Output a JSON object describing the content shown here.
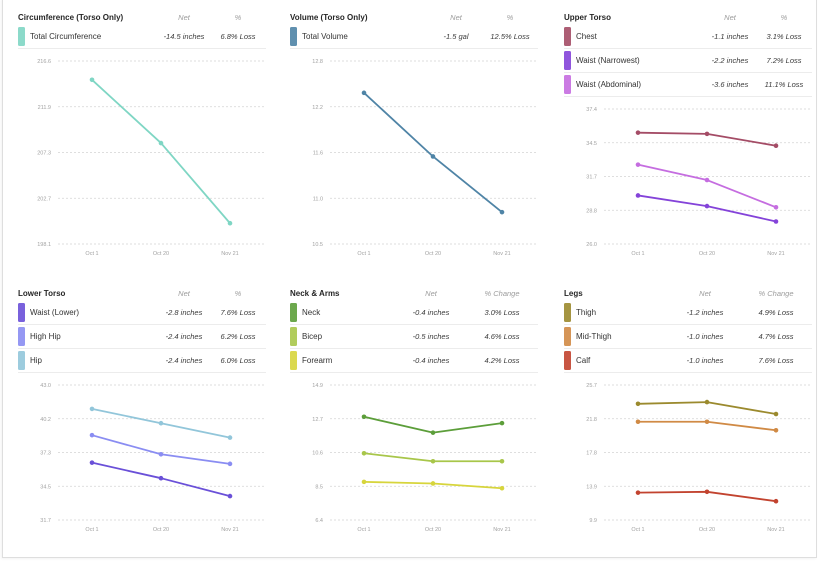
{
  "panels": [
    {
      "net_header": "Net",
      "pct_header": "%",
      "rows": [
        {
          "net": "-14.5 inches",
          "pct": "6.8% Loss"
        }
      ]
    },
    {
      "net_header": "Net",
      "pct_header": "%",
      "rows": [
        {
          "net": "-1.5 gal",
          "pct": "12.5% Loss"
        }
      ]
    },
    {
      "net_header": "Net",
      "pct_header": "%",
      "rows": [
        {
          "net": "-1.1 inches",
          "pct": "3.1% Loss"
        },
        {
          "net": "-2.2 inches",
          "pct": "7.2% Loss"
        },
        {
          "net": "-3.6 inches",
          "pct": "11.1% Loss"
        }
      ]
    },
    {
      "net_header": "Net",
      "pct_header": "%",
      "rows": [
        {
          "net": "-2.8 inches",
          "pct": "7.6% Loss"
        },
        {
          "net": "-2.4 inches",
          "pct": "6.2% Loss"
        },
        {
          "net": "-2.4 inches",
          "pct": "6.0% Loss"
        }
      ]
    },
    {
      "net_header": "Net",
      "pct_header": "% Change",
      "rows": [
        {
          "net": "-0.4 inches",
          "pct": "3.0% Loss"
        },
        {
          "net": "-0.5 inches",
          "pct": "4.6% Loss"
        },
        {
          "net": "-0.4 inches",
          "pct": "4.2% Loss"
        }
      ]
    },
    {
      "net_header": "Net",
      "pct_header": "% Change",
      "rows": [
        {
          "net": "-1.2 inches",
          "pct": "4.9% Loss"
        },
        {
          "net": "-1.0 inches",
          "pct": "4.7% Loss"
        },
        {
          "net": "-1.0 inches",
          "pct": "7.6% Loss"
        }
      ]
    }
  ],
  "chart_data": [
    {
      "type": "line",
      "title": "Circumference (Torso Only)",
      "categories": [
        "Oct 1",
        "Oct 20",
        "Nov 21"
      ],
      "yticks": [
        "216.6",
        "211.9",
        "207.3",
        "202.7",
        "198.1"
      ],
      "ylim": [
        198.1,
        216.6
      ],
      "grid": true,
      "series": [
        {
          "name": "Total Circumference",
          "color": "#7fd6c4",
          "values": [
            214.7,
            208.3,
            200.2
          ]
        }
      ]
    },
    {
      "type": "line",
      "title": "Volume (Torso Only)",
      "categories": [
        "Oct 1",
        "Oct 20",
        "Nov 21"
      ],
      "yticks": [
        "12.8",
        "12.2",
        "11.6",
        "11.0",
        "10.5"
      ],
      "ylim": [
        10.5,
        12.8
      ],
      "grid": true,
      "series": [
        {
          "name": "Total Volume",
          "color": "#4f84a6",
          "values": [
            12.4,
            11.6,
            10.9
          ]
        }
      ]
    },
    {
      "type": "line",
      "title": "Upper Torso",
      "categories": [
        "Oct 1",
        "Oct 20",
        "Nov 21"
      ],
      "yticks": [
        "37.4",
        "34.5",
        "31.7",
        "28.8",
        "26.0"
      ],
      "ylim": [
        26.0,
        37.4
      ],
      "grid": true,
      "series": [
        {
          "name": "Chest",
          "color": "#a44c66",
          "values": [
            35.4,
            35.3,
            34.3
          ]
        },
        {
          "name": "Waist (Narrowest)",
          "color": "#8443d9",
          "values": [
            30.1,
            29.2,
            27.9
          ]
        },
        {
          "name": "Waist (Abdominal)",
          "color": "#c56de0",
          "values": [
            32.7,
            31.4,
            29.1
          ]
        }
      ]
    },
    {
      "type": "line",
      "title": "Lower Torso",
      "categories": [
        "Oct 1",
        "Oct 20",
        "Nov 21"
      ],
      "yticks": [
        "43.0",
        "40.2",
        "37.3",
        "34.5",
        "31.7"
      ],
      "ylim": [
        31.7,
        43.0
      ],
      "grid": true,
      "series": [
        {
          "name": "Waist (Lower)",
          "color": "#6a50d8",
          "values": [
            36.5,
            35.2,
            33.7
          ]
        },
        {
          "name": "High Hip",
          "color": "#8a8df2",
          "values": [
            38.8,
            37.2,
            36.4
          ]
        },
        {
          "name": "Hip",
          "color": "#92c6da",
          "values": [
            41.0,
            39.8,
            38.6
          ]
        }
      ]
    },
    {
      "type": "line",
      "title": "Neck & Arms",
      "categories": [
        "Oct 1",
        "Oct 20",
        "Nov 21"
      ],
      "yticks": [
        "14.9",
        "12.7",
        "10.6",
        "8.5",
        "6.4"
      ],
      "ylim": [
        6.4,
        14.9
      ],
      "grid": true,
      "series": [
        {
          "name": "Neck",
          "color": "#5c9e3a",
          "values": [
            12.9,
            11.9,
            12.5
          ]
        },
        {
          "name": "Bicep",
          "color": "#a8c64a",
          "values": [
            10.6,
            10.1,
            10.1
          ]
        },
        {
          "name": "Forearm",
          "color": "#d7d53c",
          "values": [
            8.8,
            8.7,
            8.4
          ]
        }
      ]
    },
    {
      "type": "line",
      "title": "Legs",
      "categories": [
        "Oct 1",
        "Oct 20",
        "Nov 21"
      ],
      "yticks": [
        "25.7",
        "21.8",
        "17.8",
        "13.9",
        "9.9"
      ],
      "ylim": [
        9.9,
        25.7
      ],
      "grid": true,
      "series": [
        {
          "name": "Thigh",
          "color": "#9b8a2e",
          "values": [
            23.5,
            23.7,
            22.3
          ]
        },
        {
          "name": "Mid-Thigh",
          "color": "#d08a45",
          "values": [
            21.4,
            21.4,
            20.4
          ]
        },
        {
          "name": "Calf",
          "color": "#c2432f",
          "values": [
            13.1,
            13.2,
            12.1
          ]
        }
      ]
    }
  ]
}
